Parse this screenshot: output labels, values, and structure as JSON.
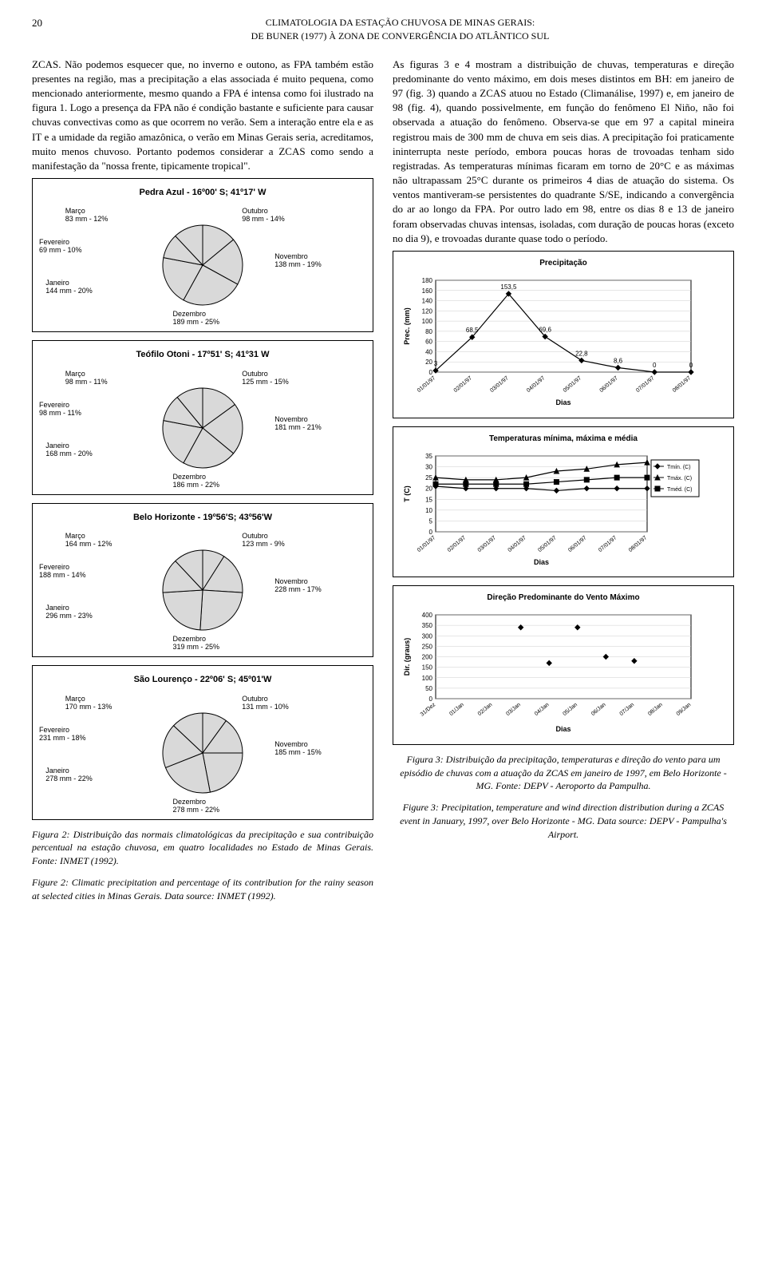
{
  "header": {
    "page_number": "20",
    "title_line1": "CLIMATOLOGIA DA ESTAÇÃO CHUVOSA DE MINAS GERAIS:",
    "title_line2": "DE BUNER (1977) À ZONA DE CONVERGÊNCIA DO ATLÂNTICO SUL"
  },
  "left_paragraph": "ZCAS. Não podemos esquecer que, no inverno e outono, as FPA também estão presentes na região, mas a precipitação a elas associada é muito pequena, como mencionado anteriormente, mesmo quando a FPA é intensa como foi ilustrado na figura 1. Logo a presença da FPA não é condição bastante e suficiente para causar chuvas convectivas como as que ocorrem no verão. Sem a interação entre ela e as IT e a umidade da região amazônica, o verão em Minas Gerais seria, acreditamos, muito menos chuvoso. Portanto podemos considerar a ZCAS como sendo a manifestação da \"nossa frente, tipicamente tropical\".",
  "right_paragraph": "As figuras 3 e 4 mostram a distribuição de chuvas, temperaturas e direção predominante do vento máximo, em dois meses distintos em BH: em janeiro de 97 (fig. 3) quando a ZCAS atuou no Estado (Climanálise, 1997) e, em janeiro de 98 (fig. 4), quando possivelmente, em função do fenômeno El Niño, não foi observada a atuação do fenômeno. Observa-se que em 97 a capital mineira registrou mais de 300 mm de chuva em seis dias. A precipitação foi praticamente ininterrupta neste período, embora poucas horas de trovoadas tenham sido registradas. As temperaturas mínimas ficaram em torno de 20°C e as máximas não ultrapassam 25°C durante os primeiros 4 dias de atuação do sistema. Os ventos mantiveram-se persistentes do quadrante S/SE, indicando a convergência do ar ao longo da FPA. Por outro lado em 98, entre os dias 8 e 13 de janeiro foram observadas chuvas intensas, isoladas, com duração de poucas horas (exceto no dia 9), e trovoadas durante quase todo o período.",
  "pie_charts": {
    "fill_color": "#d9d9d9",
    "stroke_color": "#000000",
    "radius": 50,
    "pedra_azul": {
      "title": "Pedra Azul - 16º00' S; 41º17' W",
      "slices": [
        {
          "label": "Outubro",
          "sub": "98 mm - 14%",
          "pct": 14
        },
        {
          "label": "Novembro",
          "sub": "138 mm - 19%",
          "pct": 19
        },
        {
          "label": "Dezembro",
          "sub": "189 mm - 25%",
          "pct": 25
        },
        {
          "label": "Janeiro",
          "sub": "144 mm - 20%",
          "pct": 20
        },
        {
          "label": "Fevereiro",
          "sub": "69 mm - 10%",
          "pct": 10
        },
        {
          "label": "Março",
          "sub": "83 mm - 12%",
          "pct": 12
        }
      ]
    },
    "teofilo": {
      "title": "Teófilo Otoni - 17º51' S; 41º31 W",
      "slices": [
        {
          "label": "Outubro",
          "sub": "125 mm - 15%",
          "pct": 15
        },
        {
          "label": "Novembro",
          "sub": "181 mm - 21%",
          "pct": 21
        },
        {
          "label": "Dezembro",
          "sub": "186 mm - 22%",
          "pct": 22
        },
        {
          "label": "Janeiro",
          "sub": "168 mm - 20%",
          "pct": 20
        },
        {
          "label": "Fevereiro",
          "sub": "98 mm - 11%",
          "pct": 11
        },
        {
          "label": "Março",
          "sub": "98 mm - 11%",
          "pct": 11
        }
      ]
    },
    "bh": {
      "title": "Belo Horizonte - 19º56'S; 43º56'W",
      "slices": [
        {
          "label": "Outubro",
          "sub": "123 mm - 9%",
          "pct": 9
        },
        {
          "label": "Novembro",
          "sub": "228 mm - 17%",
          "pct": 17
        },
        {
          "label": "Dezembro",
          "sub": "319 mm - 25%",
          "pct": 25
        },
        {
          "label": "Janeiro",
          "sub": "296 mm - 23%",
          "pct": 23
        },
        {
          "label": "Fevereiro",
          "sub": "188 mm - 14%",
          "pct": 14
        },
        {
          "label": "Março",
          "sub": "164 mm - 12%",
          "pct": 12
        }
      ]
    },
    "sao_lourenco": {
      "title": "São Lourenço - 22º06' S; 45º01'W",
      "slices": [
        {
          "label": "Outubro",
          "sub": "131 mm - 10%",
          "pct": 10
        },
        {
          "label": "Novembro",
          "sub": "185 mm - 15%",
          "pct": 15
        },
        {
          "label": "Dezembro",
          "sub": "278 mm - 22%",
          "pct": 22
        },
        {
          "label": "Janeiro",
          "sub": "278 mm - 22%",
          "pct": 22
        },
        {
          "label": "Fevereiro",
          "sub": "231 mm - 18%",
          "pct": 18
        },
        {
          "label": "Março",
          "sub": "170 mm - 13%",
          "pct": 13
        }
      ]
    }
  },
  "fig2_caption_pt": "Figura 2: Distribuição das normais climatológicas da precipitação e sua contribuição percentual na estação chuvosa, em quatro localidades no Estado de Minas Gerais. Fonte: INMET (1992).",
  "fig2_caption_en": "Figure 2: Climatic precipitation and percentage of its contribution for the rainy season at selected cities in Minas Gerais. Data source: INMET (1992).",
  "precip_chart": {
    "title": "Precipitação",
    "ylabel": "Prec. (mm)",
    "xlabel": "Dias",
    "ylim": [
      0,
      180
    ],
    "ytick": 20,
    "x_categories": [
      "01/01/97",
      "02/01/97",
      "03/01/97",
      "04/01/97",
      "05/01/97",
      "06/01/97",
      "07/01/97",
      "08/01/97"
    ],
    "values": [
      3,
      68.5,
      153.5,
      69.6,
      22.8,
      8.6,
      0,
      0
    ],
    "value_labels": [
      "3",
      "68,5",
      "153,5",
      "69,6",
      "22,8",
      "8,6",
      "0",
      "0"
    ],
    "line_color": "#000000",
    "marker": "diamond",
    "background": "#ffffff"
  },
  "temp_chart": {
    "title": "Temperaturas mínima, máxima e média",
    "ylabel": "T (C)",
    "xlabel": "Dias",
    "ylim": [
      0,
      35
    ],
    "ytick": 5,
    "x_categories": [
      "01/01/97",
      "02/01/97",
      "03/01/97",
      "04/01/97",
      "05/01/97",
      "06/01/97",
      "07/01/97",
      "08/01/97"
    ],
    "series": [
      {
        "name": "Tmín. (C)",
        "marker": "diamond",
        "values": [
          21,
          20,
          20,
          20,
          19,
          20,
          20,
          20
        ]
      },
      {
        "name": "Tmáx. (C)",
        "marker": "triangle",
        "values": [
          25,
          24,
          24,
          25,
          28,
          29,
          31,
          32
        ]
      },
      {
        "name": "Tméd. (C)",
        "marker": "square",
        "values": [
          22,
          22,
          22,
          22,
          23,
          24,
          25,
          25
        ]
      }
    ],
    "line_color": "#000000"
  },
  "wind_chart": {
    "title": "Direção Predominante do Vento Máximo",
    "ylabel": "Dir. (graus)",
    "xlabel": "Dias",
    "ylim": [
      0,
      400
    ],
    "ytick": 50,
    "x_categories": [
      "31/Dez",
      "01/Jan",
      "02/Jan",
      "03/Jan",
      "04/Jan",
      "05/Jan",
      "06/Jan",
      "07/Jan",
      "08/Jan",
      "09/Jan"
    ],
    "values": [
      null,
      null,
      null,
      340,
      170,
      340,
      200,
      180,
      null,
      null
    ],
    "marker": "diamond",
    "marker_color": "#000000"
  },
  "fig3_caption_pt": "Figura 3: Distribuição da precipitação, temperaturas e direção do vento para um episódio de chuvas com a atuação da ZCAS em janeiro de 1997, em Belo Horizonte - MG. Fonte: DEPV - Aeroporto da Pampulha.",
  "fig3_caption_en": "Figure 3: Precipitation, temperature and wind direction distribution during a ZCAS event in January, 1997, over Belo Horizonte - MG. Data source: DEPV - Pampulha's Airport."
}
